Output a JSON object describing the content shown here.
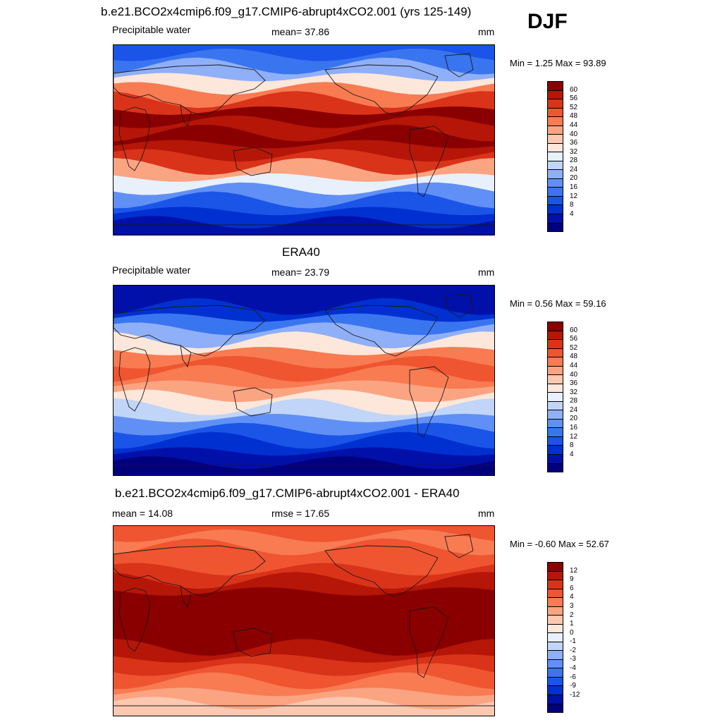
{
  "season": "DJF",
  "colors": {
    "abs_scale": [
      "#00007f",
      "#0010a8",
      "#0030d0",
      "#1a55e8",
      "#3a75f0",
      "#6090f5",
      "#8fb0f8",
      "#c0d5f7",
      "#e8f0fb",
      "#fde7da",
      "#fcc8b0",
      "#fba482",
      "#f87b52",
      "#ef5530",
      "#d9331a",
      "#b51608",
      "#8a0000"
    ],
    "diff_scale": [
      "#00007f",
      "#0010a8",
      "#0030d0",
      "#1a55e8",
      "#3a75f0",
      "#6090f5",
      "#8fb0f8",
      "#c0d5f7",
      "#e8f0fb",
      "#fde7da",
      "#fcc8b0",
      "#fba482",
      "#f87b52",
      "#ef5530",
      "#d9331a",
      "#b51608",
      "#8a0000"
    ],
    "coast": "#1a1a1a"
  },
  "panels": [
    {
      "title": "b.e21.BCO2x4cmip6.f09_g17.CMIP6-abrupt4xCO2.001 (yrs 125-149)",
      "left_label": "Precipitable water",
      "center_label": "mean=  37.86",
      "units": "mm",
      "stats": "Min =   1.25 Max =  93.89",
      "colorbar_labels": [
        "60",
        "56",
        "52",
        "48",
        "44",
        "40",
        "36",
        "32",
        "28",
        "24",
        "20",
        "16",
        "12",
        "8",
        "4"
      ]
    },
    {
      "title": "ERA40",
      "left_label": "Precipitable water",
      "center_label": "mean=  23.79",
      "units": "mm",
      "stats": "Min =   0.56 Max =  59.16",
      "colorbar_labels": [
        "60",
        "56",
        "52",
        "48",
        "44",
        "40",
        "36",
        "32",
        "28",
        "24",
        "20",
        "16",
        "12",
        "8",
        "4"
      ]
    },
    {
      "title": "b.e21.BCO2x4cmip6.f09_g17.CMIP6-abrupt4xCO2.001 - ERA40",
      "left_label": "mean =  14.08",
      "center_label": "rmse =  17.65",
      "units": "mm",
      "stats": "Min =  -0.60 Max =  52.67",
      "colorbar_labels": [
        "12",
        "9",
        "6",
        "4",
        "3",
        "2",
        "1",
        "0",
        "-1",
        "-2",
        "-3",
        "-4",
        "-6",
        "-9",
        "-12"
      ]
    }
  ],
  "map_data": {
    "fields": [
      {
        "name": "model_precipitable_water",
        "band_levels": [
          3,
          4,
          6,
          9,
          12,
          14,
          16,
          15,
          16,
          15,
          14,
          11,
          8,
          5,
          3,
          2,
          1
        ],
        "description_levels_index": "index into colors.abs_scale, north to south"
      },
      {
        "name": "era40_precipitable_water",
        "band_levels": [
          1,
          1,
          2,
          4,
          6,
          9,
          12,
          13,
          12,
          11,
          9,
          7,
          5,
          3,
          2,
          1,
          0
        ],
        "description_levels_index": "index into colors.abs_scale, north to south"
      },
      {
        "name": "difference",
        "band_levels": [
          13,
          12,
          13,
          13,
          14,
          15,
          16,
          16,
          16,
          16,
          16,
          15,
          14,
          13,
          12,
          11,
          10
        ],
        "description_levels_index": "index into colors.diff_scale, north to south"
      }
    ]
  }
}
